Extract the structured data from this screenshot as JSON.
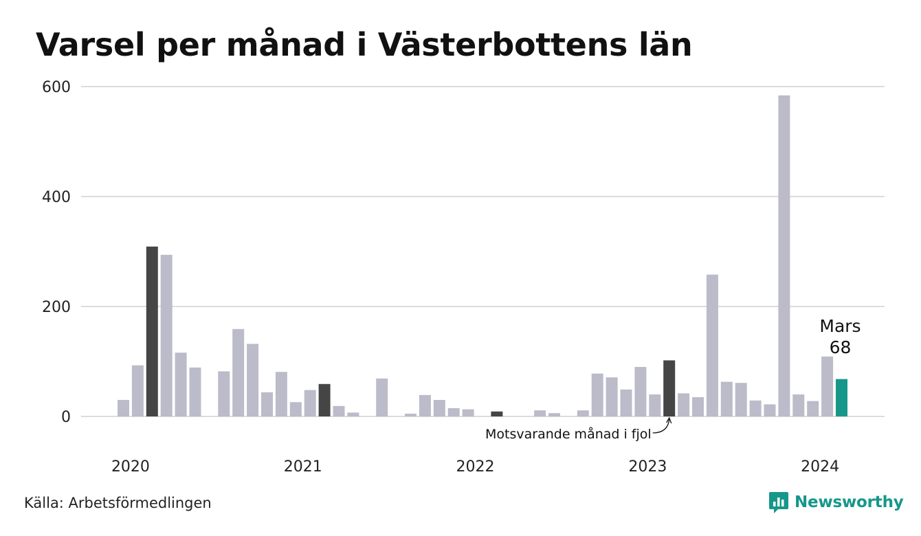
{
  "title": "Varsel per månad i Västerbottens län",
  "source": "Källa: Arbetsförmedlingen",
  "brand": {
    "name": "Newsworthy",
    "icon": "newsworthy-logo-icon"
  },
  "colors": {
    "bar": "#bcbbc9",
    "same_month": "#454545",
    "current": "#16978a",
    "grid": "#dcdcdc",
    "brand": "#16978a"
  },
  "chart_data": {
    "type": "bar",
    "title": "Varsel per månad i Västerbottens län",
    "xlabel": "",
    "ylabel": "",
    "ylim": [
      0,
      600
    ],
    "y_ticks": [
      0,
      200,
      400,
      600
    ],
    "x_tick_labels": [
      "2020",
      "2021",
      "2022",
      "2023",
      "2024"
    ],
    "grid": true,
    "categories": [
      "2020-01",
      "2020-02",
      "2020-03",
      "2020-04",
      "2020-05",
      "2020-06",
      "2020-07",
      "2020-08",
      "2020-09",
      "2020-10",
      "2020-11",
      "2020-12",
      "2021-01",
      "2021-02",
      "2021-03",
      "2021-04",
      "2021-05",
      "2021-06",
      "2021-07",
      "2021-08",
      "2021-09",
      "2021-10",
      "2021-11",
      "2021-12",
      "2022-01",
      "2022-02",
      "2022-03",
      "2022-04",
      "2022-05",
      "2022-06",
      "2022-07",
      "2022-08",
      "2022-09",
      "2022-10",
      "2022-11",
      "2022-12",
      "2023-01",
      "2023-02",
      "2023-03",
      "2023-04",
      "2023-05",
      "2023-06",
      "2023-07",
      "2023-08",
      "2023-09",
      "2023-10",
      "2023-11",
      "2023-12",
      "2024-01",
      "2024-02",
      "2024-03"
    ],
    "values": [
      30,
      93,
      309,
      294,
      116,
      89,
      0,
      82,
      159,
      132,
      44,
      81,
      26,
      48,
      59,
      19,
      7,
      0,
      69,
      0,
      5,
      39,
      30,
      15,
      13,
      0,
      9,
      0,
      0,
      11,
      6,
      0,
      11,
      78,
      71,
      49,
      90,
      40,
      102,
      42,
      35,
      258,
      63,
      61,
      29,
      22,
      584,
      40,
      28,
      109,
      68
    ],
    "same_month_indices": [
      2,
      14,
      26,
      38
    ],
    "current_index": 50,
    "annotations": {
      "current_month": "Mars",
      "current_value": "68",
      "last_year": "Motsvarande månad i fjol"
    }
  }
}
